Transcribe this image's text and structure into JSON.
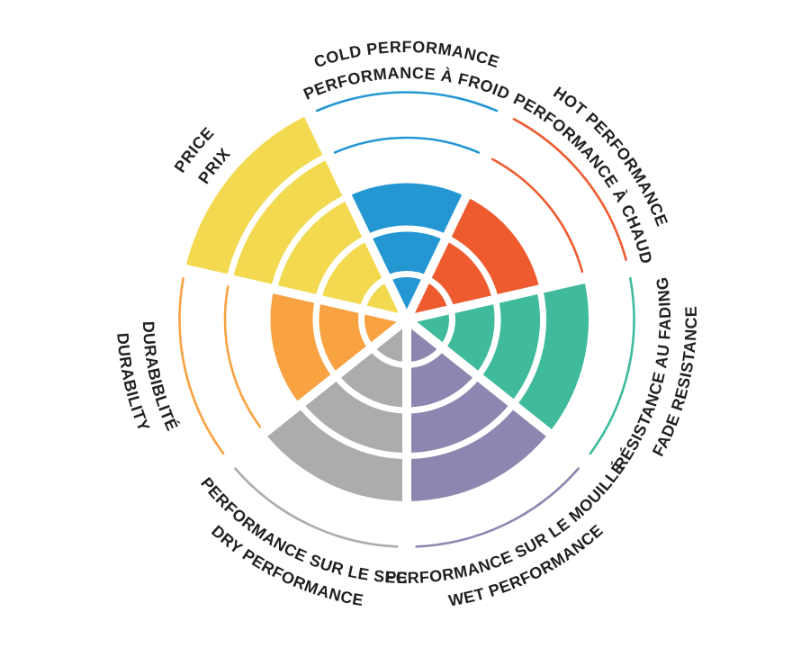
{
  "page": {
    "background": "#FFFFFF",
    "text_color": "#231F20"
  },
  "chart_data": {
    "type": "polar-sector-rating",
    "title": "",
    "scale": {
      "min": 0,
      "max": 5,
      "levels": 5
    },
    "grid": "white ring separators inside filled sectors; unachieved levels shown as thin colored arcs",
    "legend_position": "labels curved around wheel, English outer line / French inner line",
    "categories": [
      {
        "id": "cold-performance",
        "label_en": "COLD PERFORMANCE",
        "label_fr": "PERFORMANCE À FROID",
        "rating": 3,
        "color": "#2497D3",
        "label_flipped": false
      },
      {
        "id": "hot-performance",
        "label_en": "HOT PERFORMANCE",
        "label_fr": "PERFORMANCE À CHAUD",
        "rating": 3,
        "color": "#EE5B2F",
        "label_flipped": false
      },
      {
        "id": "fade-resistance",
        "label_en": "FADE RESISTANCE",
        "label_fr": "RÉSISTANCE AU FADING",
        "rating": 4,
        "color": "#3FBB9C",
        "label_flipped": true
      },
      {
        "id": "wet-performance",
        "label_en": "WET PERFORMANCE",
        "label_fr": "PERFORMANCE SUR LE MOUILLÉ",
        "rating": 4,
        "color": "#8D86B0",
        "label_flipped": true
      },
      {
        "id": "dry-performance",
        "label_en": "DRY PERFORMANCE",
        "label_fr": "PERFORMANCE SUR LE SEC",
        "rating": 4,
        "color": "#ACABAD",
        "label_flipped": true
      },
      {
        "id": "durability",
        "label_en": "DURABILITY",
        "label_fr": "DURABIBLITÉ",
        "rating": 3,
        "color": "#F8A242",
        "label_flipped": true
      },
      {
        "id": "price",
        "label_en": "PRICE",
        "label_fr": "PRIX",
        "rating": 5,
        "color": "#F2D950",
        "label_flipped": false
      }
    ]
  }
}
